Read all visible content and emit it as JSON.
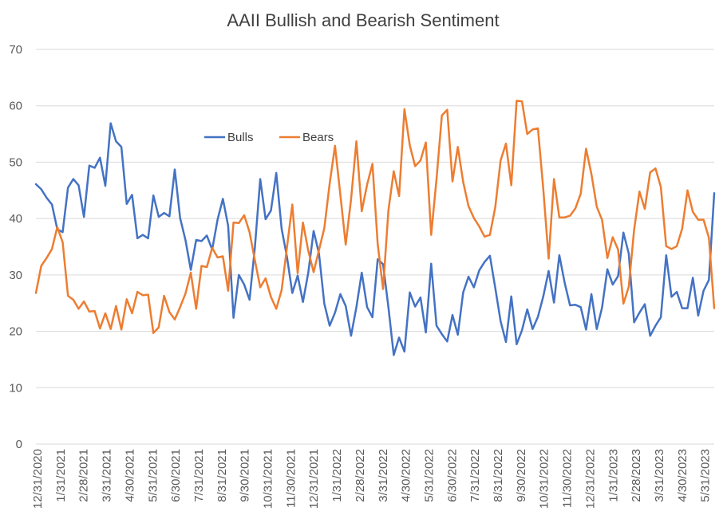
{
  "chart_data": {
    "type": "line",
    "title": "AAII Bullish and Bearish Sentiment",
    "xlabel": "",
    "ylabel": "",
    "ylim": [
      0,
      70
    ],
    "yticks": [
      "0",
      "10",
      "20",
      "30",
      "40",
      "50",
      "60",
      "70"
    ],
    "grid": true,
    "legend_position": "top-left inside plot",
    "x_tick_labels": [
      "12/31/2020",
      "1/31/2021",
      "2/28/2021",
      "3/31/2021",
      "4/30/2021",
      "5/31/2021",
      "6/30/2021",
      "7/31/2021",
      "8/31/2021",
      "9/30/2021",
      "10/31/2021",
      "11/30/2021",
      "12/31/2021",
      "1/31/2022",
      "2/28/2022",
      "3/31/2022",
      "4/30/2022",
      "5/31/2022",
      "6/30/2022",
      "7/31/2022",
      "8/31/2022",
      "9/30/2022",
      "10/31/2022",
      "11/30/2022",
      "12/31/2022",
      "1/31/2023",
      "2/28/2023",
      "3/31/2023",
      "4/30/2023",
      "5/31/2023"
    ],
    "series": [
      {
        "name": "Bulls",
        "color": "#4472C4",
        "values": [
          46.1,
          45.2,
          43.7,
          42.5,
          38.1,
          37.6,
          45.5,
          47.0,
          45.9,
          40.3,
          49.4,
          49.0,
          50.8,
          45.8,
          56.9,
          53.7,
          52.7,
          42.6,
          44.2,
          36.5,
          37.1,
          36.5,
          44.1,
          40.3,
          41.0,
          40.4,
          48.7,
          40.1,
          36.2,
          30.9,
          36.2,
          36.0,
          37.0,
          34.5,
          39.8,
          43.5,
          38.7,
          22.4,
          30.0,
          28.3,
          25.6,
          34.9,
          47.0,
          39.9,
          41.4,
          48.1,
          38.2,
          33.2,
          26.8,
          29.9,
          25.2,
          30.4,
          37.8,
          33.8,
          24.9,
          21.0,
          23.3,
          26.6,
          24.5,
          19.2,
          24.3,
          30.4,
          24.3,
          22.5,
          32.8,
          31.9,
          24.3,
          15.8,
          18.9,
          16.4,
          26.9,
          24.4,
          26.0,
          19.8,
          32.0,
          21.0,
          19.5,
          18.2,
          22.9,
          19.4,
          26.9,
          29.7,
          27.8,
          30.8,
          32.3,
          33.4,
          27.7,
          21.8,
          18.1,
          26.2,
          17.7,
          20.2,
          23.9,
          20.4,
          22.6,
          26.2,
          30.7,
          25.1,
          33.5,
          28.6,
          24.6,
          24.7,
          24.3,
          20.3,
          26.6,
          20.4,
          24.2,
          31.0,
          28.3,
          29.8,
          37.5,
          33.8,
          21.6,
          23.3,
          24.8,
          19.2,
          21.0,
          22.5,
          33.5,
          26.1,
          27.0,
          24.1,
          24.1,
          29.5,
          22.8,
          27.2,
          29.1,
          44.5
        ]
      },
      {
        "name": "Bears",
        "color": "#ED7D31",
        "values": [
          26.8,
          31.6,
          33.0,
          34.6,
          38.5,
          35.8,
          26.3,
          25.6,
          24.0,
          25.3,
          23.5,
          23.6,
          20.5,
          23.2,
          20.4,
          24.5,
          20.3,
          25.7,
          23.2,
          27.0,
          26.4,
          26.5,
          19.7,
          20.7,
          26.3,
          23.4,
          22.1,
          24.3,
          26.7,
          30.4,
          24.0,
          31.6,
          31.4,
          34.8,
          33.1,
          33.3,
          27.2,
          39.3,
          39.2,
          40.6,
          37.6,
          32.6,
          27.8,
          29.4,
          26.1,
          24.0,
          27.3,
          34.9,
          42.5,
          30.3,
          39.3,
          34.3,
          30.5,
          34.4,
          38.3,
          46.2,
          52.9,
          44.2,
          35.4,
          43.4,
          53.7,
          41.3,
          46.0,
          49.7,
          35.5,
          27.5,
          41.4,
          48.4,
          44.0,
          59.4,
          53.0,
          49.3,
          50.3,
          53.5,
          37.1,
          47.0,
          58.3,
          59.3,
          46.6,
          52.7,
          46.5,
          42.2,
          40.1,
          38.6,
          36.8,
          37.1,
          42.0,
          50.3,
          53.3,
          45.9,
          60.9,
          60.8,
          55.0,
          55.8,
          56.0,
          45.2,
          32.9,
          47.0,
          40.2,
          40.2,
          40.5,
          41.8,
          44.4,
          52.4,
          47.9,
          42.1,
          39.8,
          33.0,
          36.7,
          34.5,
          24.9,
          27.9,
          38.0,
          44.8,
          41.7,
          48.2,
          48.9,
          45.6,
          35.1,
          34.6,
          35.1,
          38.2,
          45.0,
          41.2,
          39.8,
          39.8,
          36.6,
          24.1
        ]
      }
    ]
  }
}
